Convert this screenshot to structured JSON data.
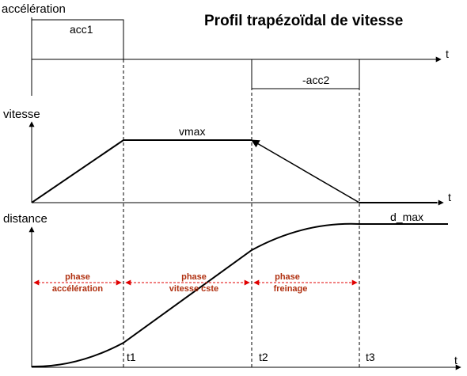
{
  "title": "Profil trapézoïdal de vitesse",
  "graphs": {
    "acceleration": {
      "ylabel": "accélération",
      "xlabel": "t",
      "pos_label": "acc1",
      "neg_label": "-acc2"
    },
    "vitesse": {
      "ylabel": "vitesse",
      "xlabel": "t",
      "max_label": "vmax"
    },
    "distance": {
      "ylabel": "distance",
      "xlabel": "t",
      "max_label": "d_max"
    }
  },
  "time_markers": [
    "t1",
    "t2",
    "t3"
  ],
  "phases": [
    {
      "line1": "phase",
      "line2": "accélération"
    },
    {
      "line1": "phase",
      "line2": "vitesse cste"
    },
    {
      "line1": "phase",
      "line2": "freinage"
    }
  ],
  "colors": {
    "lines": "#000000",
    "phase_text": "#b03010",
    "phase_arrow": "#e00000"
  }
}
